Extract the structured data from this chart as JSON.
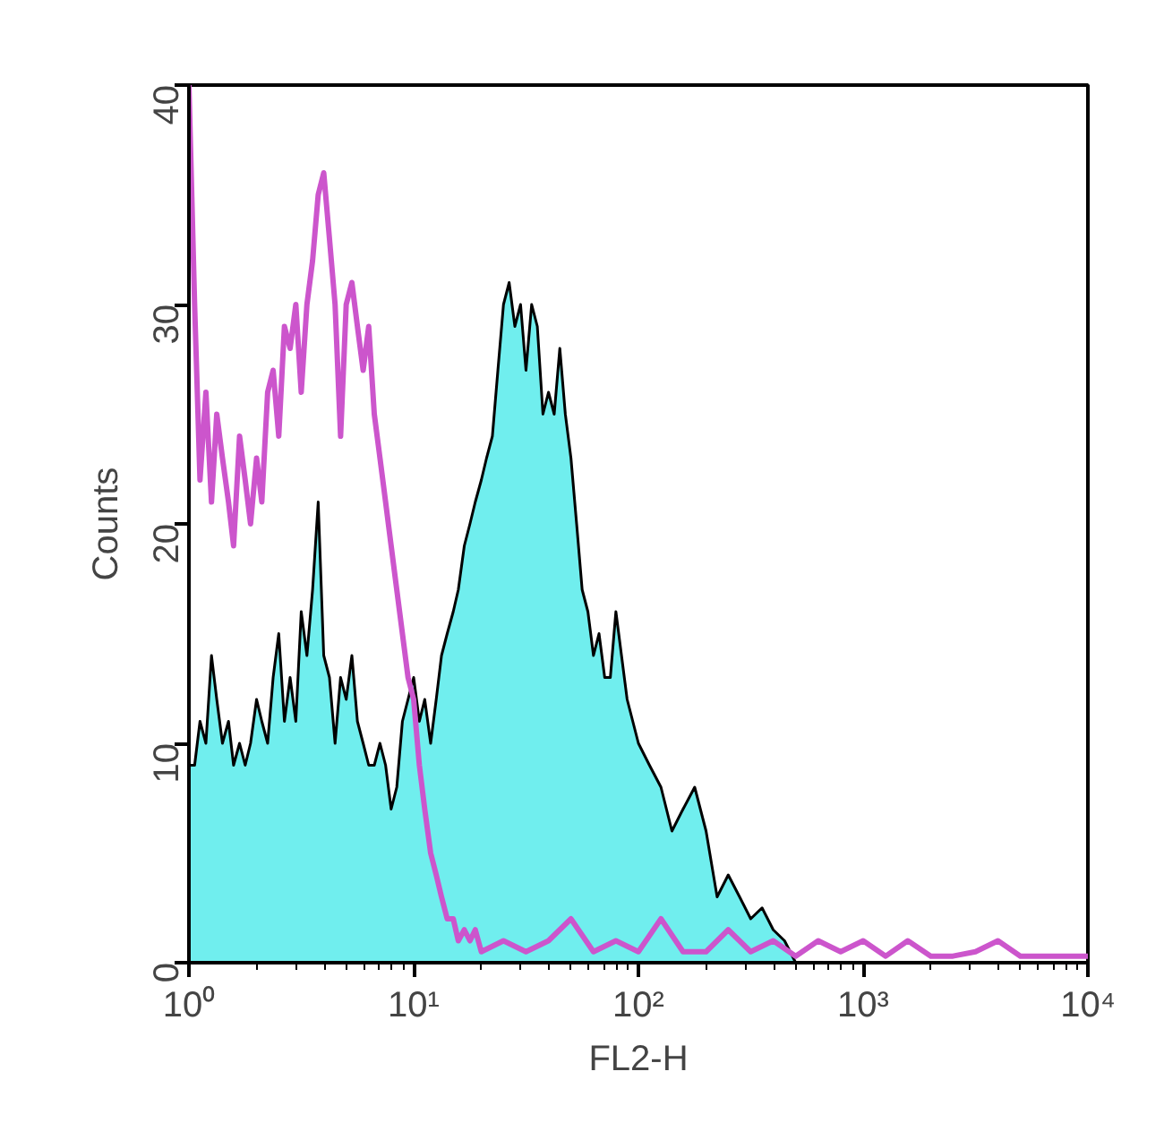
{
  "chart_data": {
    "type": "area",
    "xlabel": "FL2-H",
    "ylabel": "Counts",
    "log": "x",
    "xlim": [
      1,
      10000
    ],
    "ylim": [
      0,
      40
    ],
    "xticks": [
      {
        "value": 1,
        "label": "10⁰"
      },
      {
        "value": 10,
        "label": "10¹"
      },
      {
        "value": 100,
        "label": "10²"
      },
      {
        "value": 1000,
        "label": "10³"
      },
      {
        "value": 10000,
        "label": "10⁴"
      }
    ],
    "yticks": [
      0,
      10,
      20,
      30,
      40
    ],
    "grid": false,
    "series": [
      {
        "color": "#70eeee",
        "x": [
          1,
          1.06,
          1.12,
          1.19,
          1.26,
          1.33,
          1.41,
          1.5,
          1.58,
          1.68,
          1.78,
          1.88,
          2,
          2.11,
          2.24,
          2.37,
          2.51,
          2.66,
          2.82,
          2.99,
          3.16,
          3.35,
          3.55,
          3.76,
          3.98,
          4.22,
          4.47,
          4.73,
          5.01,
          5.31,
          5.62,
          5.96,
          6.31,
          6.68,
          7.08,
          7.5,
          7.94,
          8.41,
          8.91,
          9.44,
          10,
          10.6,
          11.2,
          11.9,
          12.6,
          13.3,
          14.1,
          15,
          15.8,
          16.8,
          17.8,
          18.8,
          20,
          21.1,
          22.4,
          23.7,
          25.1,
          26.6,
          28.2,
          29.9,
          31.6,
          33.5,
          35.5,
          37.6,
          39.8,
          42.2,
          44.7,
          47.3,
          50.1,
          53.1,
          56.2,
          59.6,
          63.1,
          66.8,
          70.8,
          75,
          79.4,
          84.1,
          89.1,
          94.4,
          100,
          112,
          126,
          141,
          158,
          178,
          200,
          224,
          251,
          282,
          316,
          355,
          398,
          447,
          501,
          562
        ],
        "values": [
          9,
          9,
          11,
          10,
          14,
          12,
          10,
          11,
          9,
          10,
          9,
          10,
          12,
          11,
          10,
          13,
          15,
          11,
          13,
          11,
          16,
          14,
          17,
          21,
          14,
          13,
          10,
          13,
          12,
          14,
          11,
          10,
          9,
          9,
          10,
          9,
          7,
          8,
          11,
          12,
          13,
          11,
          12,
          10,
          12,
          14,
          15,
          16,
          17,
          19,
          20,
          21,
          22,
          23,
          24,
          27,
          30,
          31,
          29,
          30,
          27,
          30,
          29,
          25,
          26,
          25,
          28,
          25,
          23,
          20,
          17,
          16,
          14,
          15,
          13,
          13,
          16,
          14,
          12,
          11,
          10,
          9,
          8,
          6,
          7,
          8,
          6,
          3,
          4,
          3,
          2,
          2.5,
          1.5,
          1,
          0,
          0
        ]
      },
      {
        "type": "line",
        "color": "#cc55cc",
        "x": [
          1,
          1.06,
          1.12,
          1.19,
          1.26,
          1.33,
          1.41,
          1.5,
          1.58,
          1.68,
          1.78,
          1.88,
          2,
          2.11,
          2.24,
          2.37,
          2.51,
          2.66,
          2.82,
          2.99,
          3.16,
          3.35,
          3.55,
          3.76,
          3.98,
          4.22,
          4.47,
          4.73,
          5.01,
          5.31,
          5.62,
          5.96,
          6.31,
          6.68,
          7.08,
          7.5,
          7.94,
          8.41,
          8.91,
          9.44,
          10,
          10.6,
          11.2,
          11.9,
          12.6,
          13.3,
          14.1,
          15,
          15.8,
          16.8,
          17.8,
          18.8,
          20,
          25.1,
          31.6,
          39.8,
          50.1,
          63.1,
          79.4,
          100,
          126,
          158,
          200,
          251,
          316,
          398,
          501,
          631,
          794,
          1000,
          1260,
          1580,
          2000,
          2510,
          3160,
          3980,
          5010,
          6310,
          7940,
          10000
        ],
        "values": [
          40,
          30,
          22,
          26,
          21,
          25,
          23,
          21,
          19,
          24,
          22,
          20,
          23,
          21,
          26,
          27,
          24,
          29,
          28,
          30,
          26,
          30,
          32,
          35,
          36,
          33,
          30,
          24,
          30,
          31,
          29,
          27,
          29,
          25,
          23,
          21,
          19,
          17,
          15,
          13,
          12,
          9,
          7,
          5,
          4,
          3,
          2,
          2,
          1,
          1.5,
          1,
          1.5,
          0.5,
          1,
          0.5,
          1,
          2,
          0.5,
          1,
          0.5,
          2,
          0.5,
          0.5,
          1.5,
          0.5,
          1,
          0.3,
          1,
          0.5,
          1,
          0.3,
          1,
          0.3,
          0.3,
          0.5,
          1,
          0.3,
          0.3,
          0.3,
          0.3
        ]
      }
    ]
  }
}
